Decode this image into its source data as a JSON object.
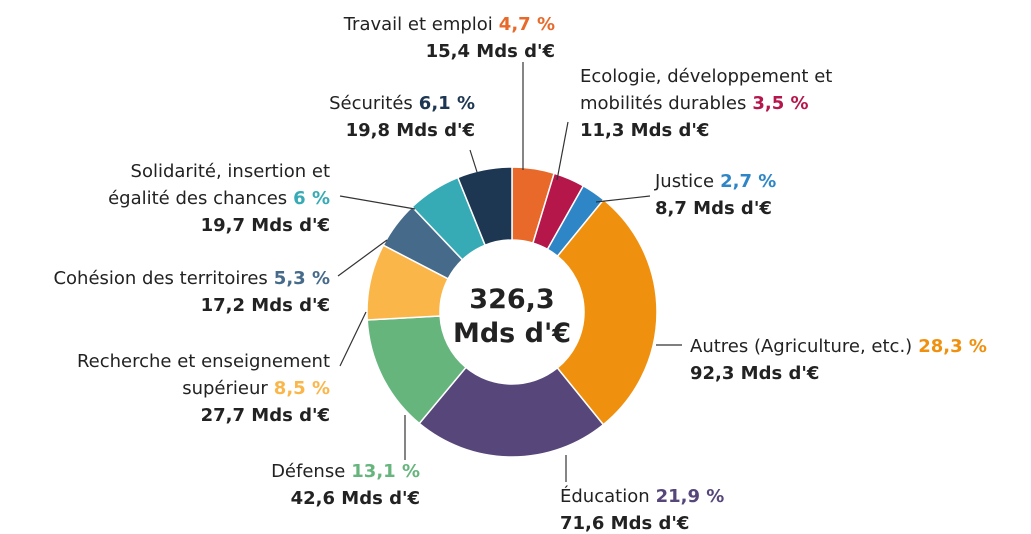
{
  "chart_data": {
    "type": "donut",
    "center_label": [
      "326,3",
      "Mds d'€"
    ],
    "categories": [
      [
        "Travail et emploi"
      ],
      [
        "Ecologie, développement et",
        "mobilités durables"
      ],
      [
        "Justice"
      ],
      [
        "Autres (Agriculture, etc.)"
      ],
      [
        "Éducation"
      ],
      [
        "Défense"
      ],
      [
        "Recherche et enseignement",
        "supérieur"
      ],
      [
        "Cohésion des territoires"
      ],
      [
        "Solidarité, insertion et",
        "égalité des chances"
      ],
      [
        "Sécurités"
      ]
    ],
    "values": [
      4.7,
      3.5,
      2.7,
      28.3,
      21.9,
      13.1,
      8.5,
      5.3,
      6,
      6.1
    ],
    "value_labels": [
      "4,7 %",
      "3,5 %",
      "2,7 %",
      "28,3 %",
      "21,9 %",
      "13,1 %",
      "8,5 %",
      "5,3 %",
      "6 %",
      "6,1 %"
    ],
    "amount_labels": [
      "15,4 Mds d'€",
      "11,3 Mds d'€",
      "8,7 Mds d'€",
      "92,3 Mds d'€",
      "71,6 Mds d'€",
      "42,6 Mds d'€",
      "27,7 Mds d'€",
      "17,2 Mds d'€",
      "19,7 Mds d'€",
      "19,8 Mds d'€"
    ],
    "colors": [
      "#e8692a",
      "#b5174b",
      "#2f86c6",
      "#f0900f",
      "#56467a",
      "#66b57d",
      "#fbb64a",
      "#456a8a",
      "#36abb5",
      "#1d3651"
    ]
  }
}
